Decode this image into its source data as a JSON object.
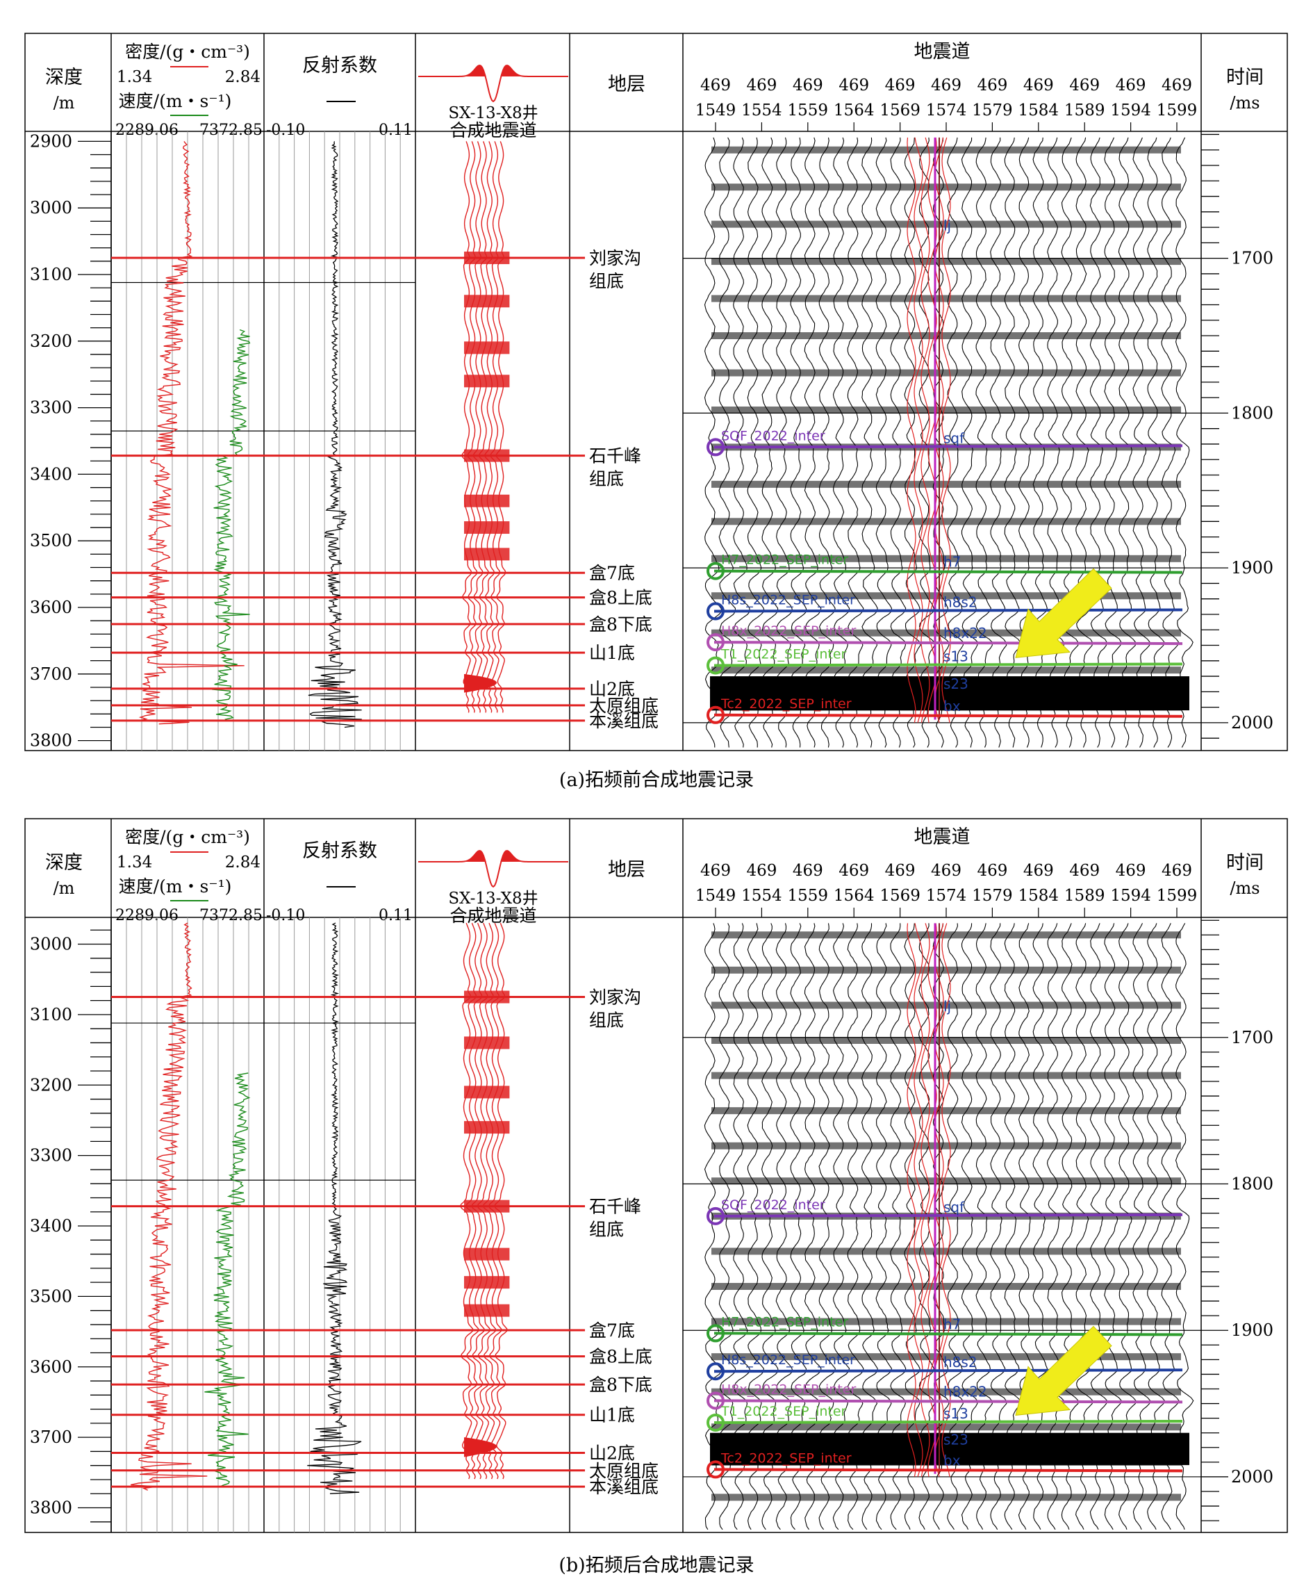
{
  "panels": [
    {
      "id": "a",
      "caption": "(a)拓频前合成地震记录",
      "depth_ticks": [
        "2900",
        "3000",
        "3100",
        "3200",
        "3300",
        "3400",
        "3500",
        "3600",
        "3700",
        "3800"
      ],
      "depth_range": [
        2885,
        3815
      ],
      "time_ticks": [
        "1700",
        "1800",
        "1900",
        "2000"
      ],
      "time_range": [
        1618,
        2018
      ],
      "synthetic_amplitude": "low"
    },
    {
      "id": "b",
      "caption": "(b)拓频后合成地震记录",
      "depth_ticks": [
        "3000",
        "3100",
        "3200",
        "3300",
        "3400",
        "3500",
        "3600",
        "3700",
        "3800"
      ],
      "depth_range": [
        2962,
        3835
      ],
      "time_ticks": [
        "1700",
        "1800",
        "1900",
        "2000"
      ],
      "time_range": [
        1618,
        2038
      ],
      "synthetic_amplitude": "high"
    }
  ],
  "header": {
    "depth_title": "深度",
    "depth_unit": "/m",
    "density_title": "密度/(g・cm⁻³)",
    "density_min": "1.34",
    "density_max": "2.84",
    "velocity_title": "速度/(m・s⁻¹)",
    "velocity_min": "2289.06",
    "velocity_max": "7372.85",
    "rc_title": "反射系数",
    "rc_min": "-0.10",
    "rc_max": "0.11",
    "synthetic_well": "SX-13-X8井",
    "synthetic_title": "合成地震道",
    "strata_title": "地层",
    "seismic_title": "地震道",
    "time_title": "时间",
    "time_unit": "/ms"
  },
  "trace_numbers": [
    {
      "il": "469",
      "xl": "1549"
    },
    {
      "il": "469",
      "xl": "1554"
    },
    {
      "il": "469",
      "xl": "1559"
    },
    {
      "il": "469",
      "xl": "1564"
    },
    {
      "il": "469",
      "xl": "1569"
    },
    {
      "il": "469",
      "xl": "1574"
    },
    {
      "il": "469",
      "xl": "1579"
    },
    {
      "il": "469",
      "xl": "1584"
    },
    {
      "il": "469",
      "xl": "1589"
    },
    {
      "il": "469",
      "xl": "1594"
    },
    {
      "il": "469",
      "xl": "1599"
    }
  ],
  "strata": [
    {
      "name": "刘家沟",
      "name2": "组底",
      "depth": 3075
    },
    {
      "name": "石千峰",
      "name2": "组底",
      "depth": 3372
    },
    {
      "name": "盒7底",
      "name2": "",
      "depth": 3548
    },
    {
      "name": "盒8上底",
      "name2": "",
      "depth": 3585
    },
    {
      "name": "盒8下底",
      "name2": "",
      "depth": 3625
    },
    {
      "name": "山1底",
      "name2": "",
      "depth": 3668
    },
    {
      "name": "山2底",
      "name2": "",
      "depth": 3722
    },
    {
      "name": "太原组底",
      "name2": "",
      "depth": 3747
    },
    {
      "name": "本溪组底",
      "name2": "",
      "depth": 3770
    }
  ],
  "horizons": [
    {
      "name": "SQF_2022_inter",
      "pick": "sqf",
      "time": 1822,
      "color": "#7b35b5"
    },
    {
      "name": "H7_2022_SEP_inter",
      "pick": "h7",
      "time": 1902,
      "color": "#2f9e2f"
    },
    {
      "name": "H8s_2022_SEP_inter",
      "pick": "h8s2",
      "time": 1928,
      "color": "#1f3f9f"
    },
    {
      "name": "H8x_2022_SEP_inter",
      "pick": "h8x22",
      "time": 1948,
      "color": "#b04fb0"
    },
    {
      "name": "T1_2022_SEP_inter",
      "pick": "s13",
      "time": 1963,
      "color": "#5bbf3a"
    },
    {
      "name": "Tc2_2022_SEP_inter",
      "pick": "bx",
      "time": 1995,
      "color": "#e02020"
    }
  ],
  "unlabeled_picks": [
    {
      "pick": "lj",
      "time": 1682,
      "color": "#1f3f9f"
    },
    {
      "pick": "s23",
      "time": 1978,
      "color": "#1f3f9f"
    }
  ],
  "colors": {
    "density": "#e02020",
    "velocity": "#1a8a1a",
    "reflection": "#000000",
    "synthetic": "#e02020",
    "strata_line": "#e02020",
    "arrow": "#f0ec1a",
    "border": "#000000"
  }
}
